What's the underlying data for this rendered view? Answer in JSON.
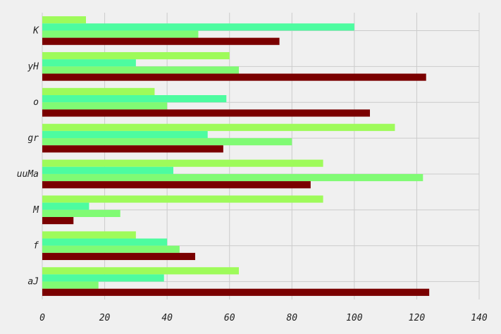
{
  "chart_data": {
    "type": "bar",
    "orientation": "horizontal",
    "categories": [
      "K",
      "yH",
      "o",
      "gr",
      "uuMa",
      "M",
      "f",
      "aJ"
    ],
    "series": [
      {
        "color": "#9efb5a",
        "values": [
          14,
          60,
          36,
          113,
          90,
          90,
          30,
          63
        ]
      },
      {
        "color": "#4dfca0",
        "values": [
          100,
          30,
          59,
          53,
          42,
          15,
          40,
          39
        ]
      },
      {
        "color": "#80fb74",
        "values": [
          50,
          63,
          40,
          80,
          122,
          25,
          44,
          18
        ]
      },
      {
        "color": "#7a0000",
        "values": [
          76,
          123,
          105,
          58,
          86,
          10,
          49,
          124
        ]
      }
    ],
    "xticks": [
      "0",
      "20",
      "40",
      "60",
      "80",
      "100",
      "120",
      "140"
    ],
    "xlim": [
      0,
      140
    ],
    "grid": true,
    "title": "",
    "xlabel": "",
    "ylabel": ""
  }
}
